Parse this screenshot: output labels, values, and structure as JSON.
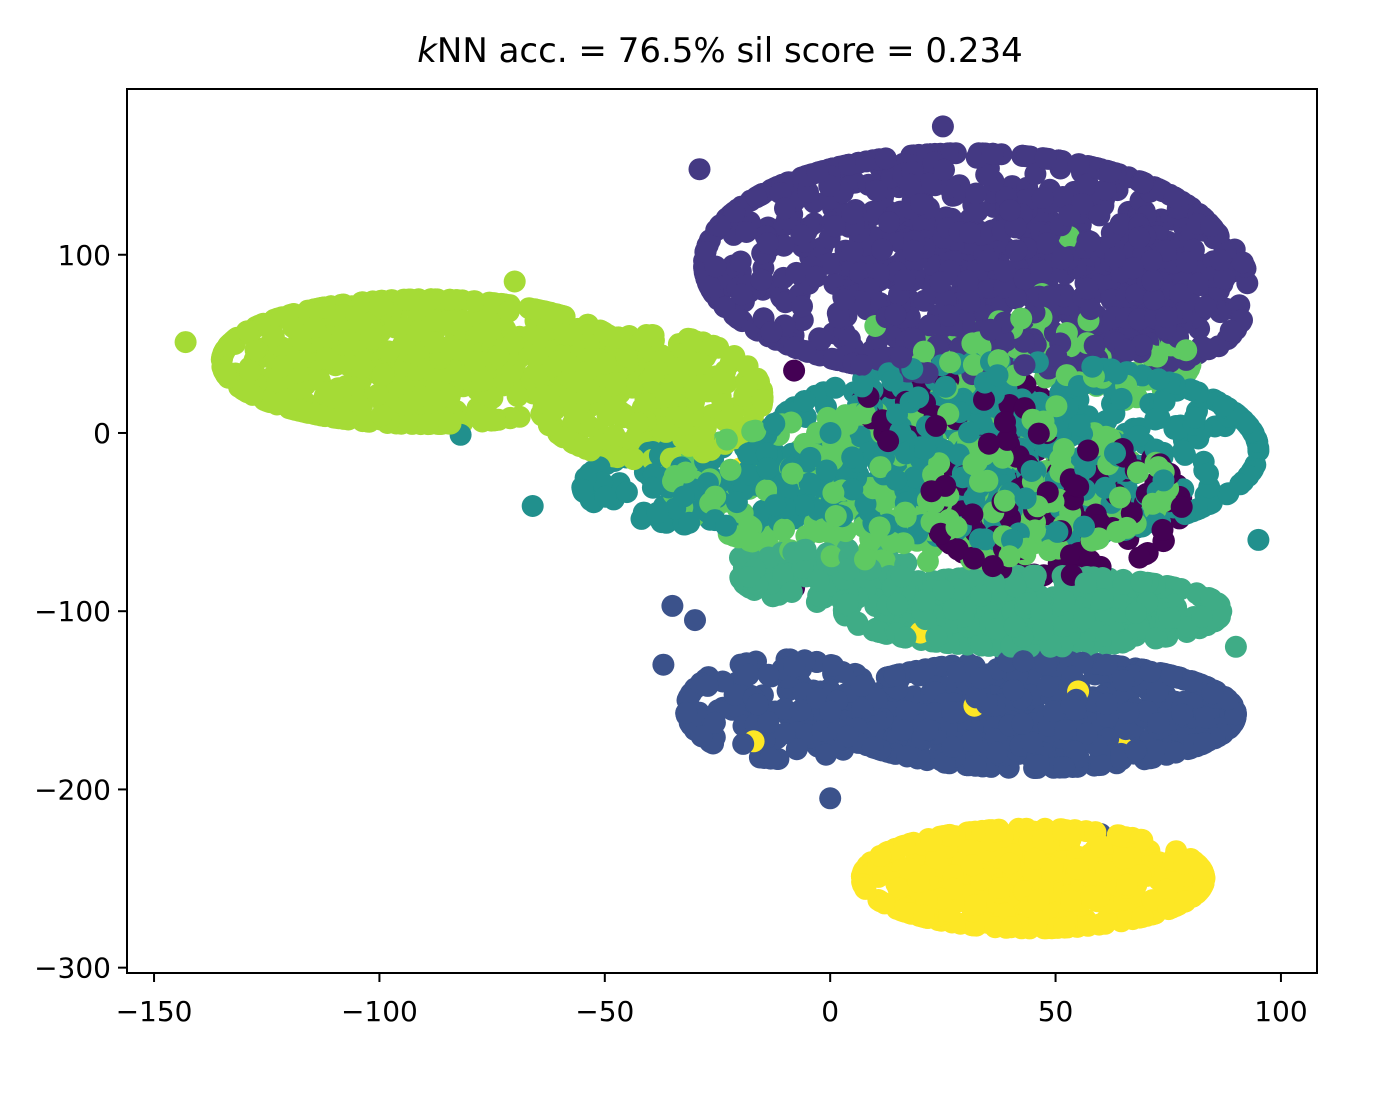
{
  "chart_data": {
    "type": "scatter",
    "title_prefix": "k",
    "title_rest": "NN acc. = 76.5% sil score = 0.234",
    "xlabel": "",
    "ylabel": "",
    "xlim": [
      -156,
      108
    ],
    "ylim": [
      -303,
      193
    ],
    "x_ticks": [
      -150,
      -100,
      -50,
      0,
      50,
      100
    ],
    "x_tick_labels": [
      "−150",
      "−100",
      "−50",
      "0",
      "50",
      "100"
    ],
    "y_ticks": [
      -300,
      -200,
      -100,
      0,
      100
    ],
    "y_tick_labels": [
      "−300",
      "−200",
      "−100",
      "0",
      "100"
    ],
    "grid": false,
    "legend": "none",
    "series": [
      {
        "color": "#443983",
        "clusters": [
          {
            "cx": 30,
            "cy": 95,
            "rx": 58,
            "ry": 62,
            "n": 900
          },
          {
            "cx": 75,
            "cy": 80,
            "rx": 18,
            "ry": 40,
            "n": 150
          }
        ],
        "points": [
          [
            -29,
            148
          ],
          [
            25,
            172
          ],
          [
            -14,
            110
          ]
        ]
      },
      {
        "color": "#a5db36",
        "clusters": [
          {
            "cx": -90,
            "cy": 40,
            "rx": 45,
            "ry": 35,
            "n": 650
          },
          {
            "cx": -40,
            "cy": 20,
            "rx": 25,
            "ry": 35,
            "n": 260
          }
        ],
        "points": [
          [
            -143,
            51
          ],
          [
            -108,
            10
          ],
          [
            -70,
            85
          ]
        ]
      },
      {
        "color": "#21908d",
        "clusters": [
          {
            "cx": 40,
            "cy": -10,
            "rx": 55,
            "ry": 50,
            "n": 520
          },
          {
            "cx": -25,
            "cy": -30,
            "rx": 30,
            "ry": 22,
            "n": 160
          }
        ],
        "points": [
          [
            -82,
            -1
          ],
          [
            -66,
            -41
          ],
          [
            95,
            -60
          ]
        ]
      },
      {
        "color": "#3b528b",
        "clusters": [
          {
            "cx": 45,
            "cy": -158,
            "rx": 45,
            "ry": 30,
            "n": 650
          },
          {
            "cx": -10,
            "cy": -155,
            "rx": 22,
            "ry": 28,
            "n": 140
          }
        ],
        "points": [
          [
            -37,
            -130
          ],
          [
            -27,
            -137
          ],
          [
            0,
            -205
          ],
          [
            -35,
            -97
          ],
          [
            -30,
            -105
          ],
          [
            60,
            -225
          ]
        ]
      },
      {
        "color": "#fde725",
        "clusters": [
          {
            "cx": 45,
            "cy": -250,
            "rx": 38,
            "ry": 28,
            "n": 520
          }
        ],
        "points": [
          [
            -17,
            -173
          ],
          [
            32,
            -153
          ],
          [
            55,
            -145
          ],
          [
            20,
            -112
          ],
          [
            -20,
            -20
          ],
          [
            65,
            -177
          ]
        ]
      },
      {
        "color": "#5ec962",
        "clusters": [
          {
            "cx": 20,
            "cy": -30,
            "rx": 55,
            "ry": 42,
            "n": 380
          },
          {
            "cx": 50,
            "cy": 40,
            "rx": 30,
            "ry": 25,
            "n": 70
          }
        ],
        "points": [
          [
            53,
            110
          ],
          [
            34,
            60
          ],
          [
            47,
            78
          ],
          [
            10,
            60
          ],
          [
            -107,
            10
          ],
          [
            -52,
            20
          ]
        ]
      },
      {
        "color": "#440154",
        "clusters": [
          {
            "cx": 50,
            "cy": -40,
            "rx": 28,
            "ry": 40,
            "n": 170
          },
          {
            "cx": 30,
            "cy": 10,
            "rx": 25,
            "ry": 20,
            "n": 60
          }
        ],
        "points": [
          [
            -8,
            35
          ],
          [
            -8,
            -87
          ],
          [
            37,
            -100
          ],
          [
            12,
            0
          ]
        ]
      },
      {
        "color": "#3fac86",
        "clusters": [
          {
            "cx": 45,
            "cy": -100,
            "rx": 42,
            "ry": 20,
            "n": 380
          },
          {
            "cx": 0,
            "cy": -80,
            "rx": 20,
            "ry": 15,
            "n": 110
          }
        ],
        "points": [
          [
            -20,
            -70
          ],
          [
            85,
            -100
          ],
          [
            90,
            -120
          ]
        ]
      }
    ]
  }
}
